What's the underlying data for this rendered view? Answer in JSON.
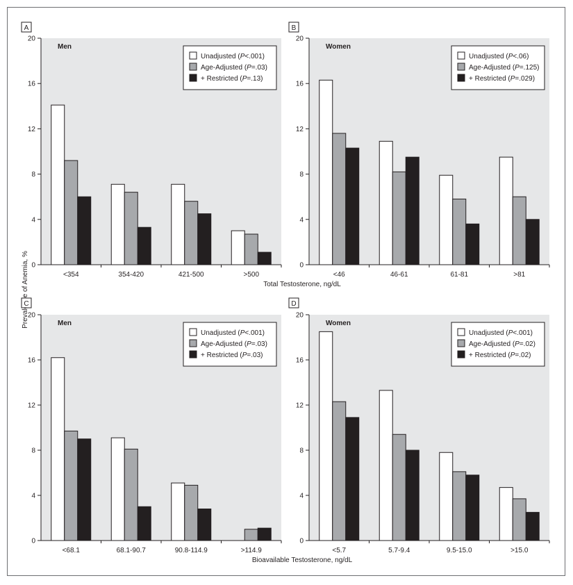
{
  "colors": {
    "unadjusted": "#ffffff",
    "age_adjusted": "#a7a9ac",
    "restricted": "#231f20",
    "plot_background": "#e6e7e8"
  },
  "figure": {
    "ylabel": "Prevalence of Anemia, %",
    "xlabel_top": "Total Testosterone, ng/dL",
    "xlabel_bottom": "Bioavailable Testosterone, ng/dL"
  },
  "chart_data": [
    {
      "type": "bar",
      "panel": "A",
      "title": "Men",
      "categories": [
        "<354",
        "354-420",
        "421-500",
        ">500"
      ],
      "series": [
        {
          "name": "Unadjusted",
          "p": "<.001",
          "values": [
            14.1,
            7.1,
            7.1,
            3.0
          ]
        },
        {
          "name": "Age-Adjusted",
          "p": "=.03",
          "values": [
            9.2,
            6.4,
            5.6,
            2.7
          ]
        },
        {
          "name": "+ Restricted",
          "p": "=.13",
          "values": [
            6.0,
            3.3,
            4.5,
            1.1
          ]
        }
      ],
      "yticks": [
        0,
        4,
        8,
        12,
        16,
        20
      ],
      "ylim": [
        0,
        20
      ],
      "legend_position": "top-right"
    },
    {
      "type": "bar",
      "panel": "B",
      "title": "Women",
      "categories": [
        "<46",
        "46-61",
        "61-81",
        ">81"
      ],
      "series": [
        {
          "name": "Unadjusted",
          "p": "<.06",
          "values": [
            16.3,
            10.9,
            7.9,
            9.5
          ]
        },
        {
          "name": "Age-Adjusted",
          "p": "=.125",
          "values": [
            11.6,
            8.2,
            5.8,
            6.0
          ]
        },
        {
          "name": "+ Restricted",
          "p": "=.029",
          "values": [
            10.3,
            9.5,
            3.6,
            4.0
          ]
        }
      ],
      "yticks": [
        0,
        4,
        8,
        12,
        16,
        20
      ],
      "ylim": [
        0,
        20
      ],
      "legend_position": "top-right"
    },
    {
      "type": "bar",
      "panel": "C",
      "title": "Men",
      "categories": [
        "<68.1",
        "68.1-90.7",
        "90.8-114.9",
        ">114.9"
      ],
      "series": [
        {
          "name": "Unadjusted",
          "p": "<.001",
          "values": [
            16.2,
            9.1,
            5.1,
            0
          ]
        },
        {
          "name": "Age-Adjusted",
          "p": "=.03",
          "values": [
            9.7,
            8.1,
            4.9,
            1.0
          ]
        },
        {
          "name": "+ Restricted",
          "p": "=.03",
          "values": [
            9.0,
            3.0,
            2.8,
            1.1
          ]
        }
      ],
      "yticks": [
        0,
        4,
        8,
        12,
        16,
        20
      ],
      "ylim": [
        0,
        20
      ],
      "legend_position": "top-right"
    },
    {
      "type": "bar",
      "panel": "D",
      "title": "Women",
      "categories": [
        "<5.7",
        "5.7-9.4",
        "9.5-15.0",
        ">15.0"
      ],
      "series": [
        {
          "name": "Unadjusted",
          "p": "<.001",
          "values": [
            18.5,
            13.3,
            7.8,
            4.7
          ]
        },
        {
          "name": "Age-Adjusted",
          "p": "=.02",
          "values": [
            12.3,
            9.4,
            6.1,
            3.7
          ]
        },
        {
          "name": "+ Restricted",
          "p": "=.02",
          "values": [
            10.9,
            8.0,
            5.8,
            2.5
          ]
        }
      ],
      "yticks": [
        0,
        4,
        8,
        12,
        16,
        20
      ],
      "ylim": [
        0,
        20
      ],
      "legend_position": "top-right"
    }
  ]
}
